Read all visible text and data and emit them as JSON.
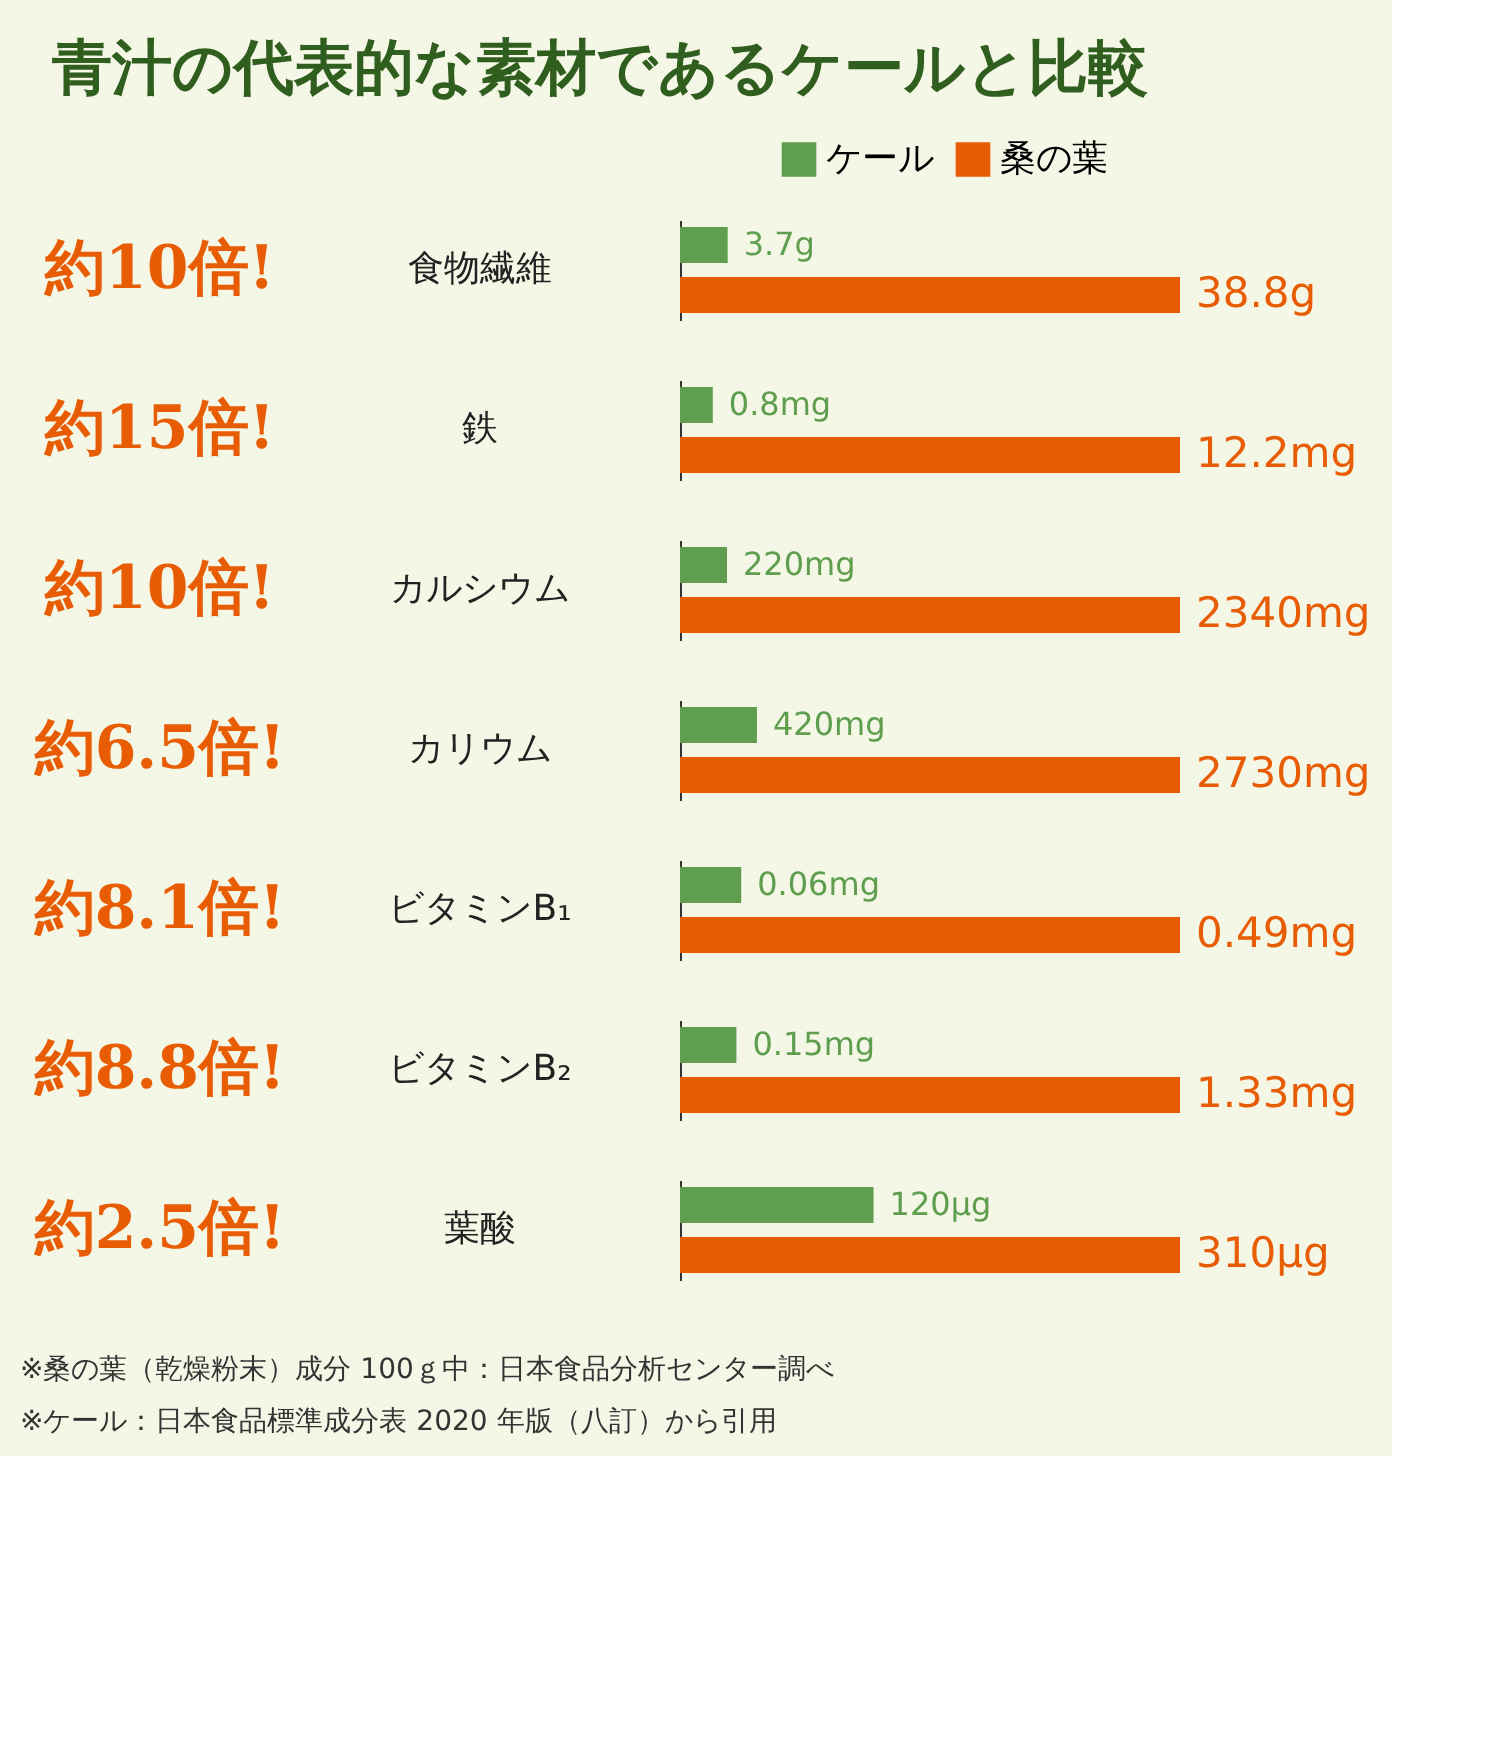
{
  "chart_data": [
    {
      "type": "bar",
      "orientation": "horizontal",
      "title": "青汁の代表的な素材であるケールと比較",
      "legend": "top",
      "tick_labels": false,
      "categories": [
        "食物繊維"
      ],
      "annotations": [
        "約10倍!"
      ],
      "series": [
        {
          "name": "ケール",
          "color": "#5f9e4f",
          "values": [
            3.7
          ],
          "value_labels": [
            "3.7g"
          ]
        },
        {
          "name": "桑の葉",
          "color": "#e85d04",
          "values": [
            38.8
          ],
          "value_labels": [
            "38.8g"
          ]
        }
      ]
    },
    {
      "type": "bar",
      "orientation": "horizontal",
      "tick_labels": false,
      "categories": [
        "鉄"
      ],
      "annotations": [
        "約15倍!"
      ],
      "series": [
        {
          "color": "#5f9e4f",
          "values": [
            0.8
          ],
          "value_labels": [
            "0.8mg"
          ]
        },
        {
          "color": "#e85d04",
          "values": [
            12.2
          ],
          "value_labels": [
            "12.2mg"
          ]
        }
      ]
    },
    {
      "type": "bar",
      "orientation": "horizontal",
      "tick_labels": false,
      "categories": [
        "カルシウム"
      ],
      "annotations": [
        "約10倍!"
      ],
      "series": [
        {
          "color": "#5f9e4f",
          "values": [
            220
          ],
          "value_labels": [
            "220mg"
          ]
        },
        {
          "color": "#e85d04",
          "values": [
            2340
          ],
          "value_labels": [
            "2340mg"
          ]
        }
      ]
    },
    {
      "type": "bar",
      "orientation": "horizontal",
      "tick_labels": false,
      "categories": [
        "カリウム"
      ],
      "annotations": [
        "約6.5倍!"
      ],
      "series": [
        {
          "color": "#5f9e4f",
          "values": [
            420
          ],
          "value_labels": [
            "420mg"
          ]
        },
        {
          "color": "#e85d04",
          "values": [
            2730
          ],
          "value_labels": [
            "2730mg"
          ]
        }
      ]
    },
    {
      "type": "bar",
      "orientation": "horizontal",
      "tick_labels": false,
      "categories": [
        "ビタミンB₁"
      ],
      "annotations": [
        "約8.1倍!"
      ],
      "series": [
        {
          "color": "#5f9e4f",
          "values": [
            0.06
          ],
          "value_labels": [
            "0.06mg"
          ]
        },
        {
          "color": "#e85d04",
          "values": [
            0.49
          ],
          "value_labels": [
            "0.49mg"
          ]
        }
      ]
    },
    {
      "type": "bar",
      "orientation": "horizontal",
      "tick_labels": false,
      "categories": [
        "ビタミンB₂"
      ],
      "annotations": [
        "約8.8倍!"
      ],
      "series": [
        {
          "color": "#5f9e4f",
          "values": [
            0.15
          ],
          "value_labels": [
            "0.15mg"
          ]
        },
        {
          "color": "#e85d04",
          "values": [
            1.33
          ],
          "value_labels": [
            "1.33mg"
          ]
        }
      ]
    },
    {
      "type": "bar",
      "orientation": "horizontal",
      "tick_labels": false,
      "categories": [
        "葉酸"
      ],
      "annotations": [
        "約2.5倍!",
        "※桑の葉（乾燥粉末）成分 100ｇ中：日本食品分析センター調べ",
        "※ケール：日本食品標準成分表 2020 年版（八訂）から引用"
      ],
      "series": [
        {
          "color": "#5f9e4f",
          "values": [
            120
          ],
          "value_labels": [
            "120μg"
          ]
        },
        {
          "color": "#e85d04",
          "values": [
            310
          ],
          "value_labels": [
            "310μg"
          ]
        }
      ]
    }
  ]
}
